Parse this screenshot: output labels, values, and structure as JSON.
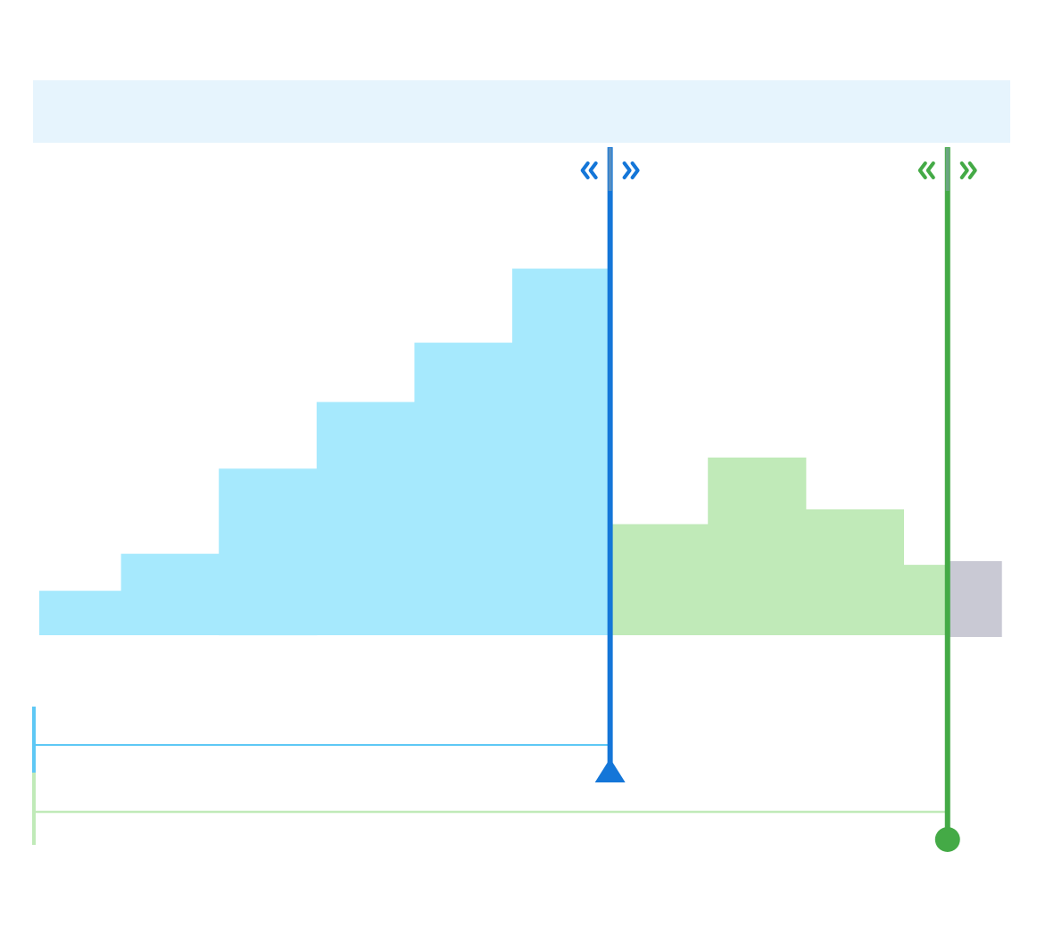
{
  "colors": {
    "track": "#e6f4fd",
    "first_window_fill": "#a6e9fd",
    "first_window_marker": "#1476d8",
    "first_window_range": "#5ec8f5",
    "second_window_fill": "#c0eab8",
    "second_window_marker": "#44aa46",
    "second_window_range": "#c0eab8",
    "remainder_fill": "#c9c9d4"
  },
  "icons": {
    "first_marker_handle": "double-chevron-resize-icon",
    "second_marker_handle": "double-chevron-resize-icon",
    "first_marker_end": "triangle-marker-icon",
    "second_marker_end": "circle-marker-icon"
  },
  "chart_data": {
    "type": "bar",
    "ylim": [
      0,
      10
    ],
    "segments": [
      {
        "series": "first",
        "start": 0.0,
        "end": 0.9,
        "value": 1.2
      },
      {
        "series": "first",
        "start": 0.9,
        "end": 1.9,
        "value": 2.2
      },
      {
        "series": "first",
        "start": 1.9,
        "end": 2.9,
        "value": 4.5
      },
      {
        "series": "first",
        "start": 2.9,
        "end": 3.9,
        "value": 6.3
      },
      {
        "series": "first",
        "start": 3.9,
        "end": 4.9,
        "value": 7.9
      },
      {
        "series": "first",
        "start": 4.9,
        "end": 5.9,
        "value": 9.9
      },
      {
        "series": "second",
        "start": 5.9,
        "end": 6.9,
        "value": 3.0
      },
      {
        "series": "second",
        "start": 6.9,
        "end": 7.9,
        "value": 4.8
      },
      {
        "series": "second",
        "start": 7.9,
        "end": 8.9,
        "value": 3.4
      },
      {
        "series": "second",
        "start": 8.9,
        "end": 9.35,
        "value": 1.9
      },
      {
        "series": "remainder",
        "start": 9.35,
        "end": 9.9,
        "value": 2.0
      }
    ],
    "markers": [
      {
        "id": "first",
        "position": 5.9
      },
      {
        "id": "second",
        "position": 9.35
      }
    ],
    "ranges": [
      {
        "id": "first",
        "start": 0.0,
        "end": 5.9
      },
      {
        "id": "second",
        "start": 0.0,
        "end": 9.35
      }
    ]
  }
}
